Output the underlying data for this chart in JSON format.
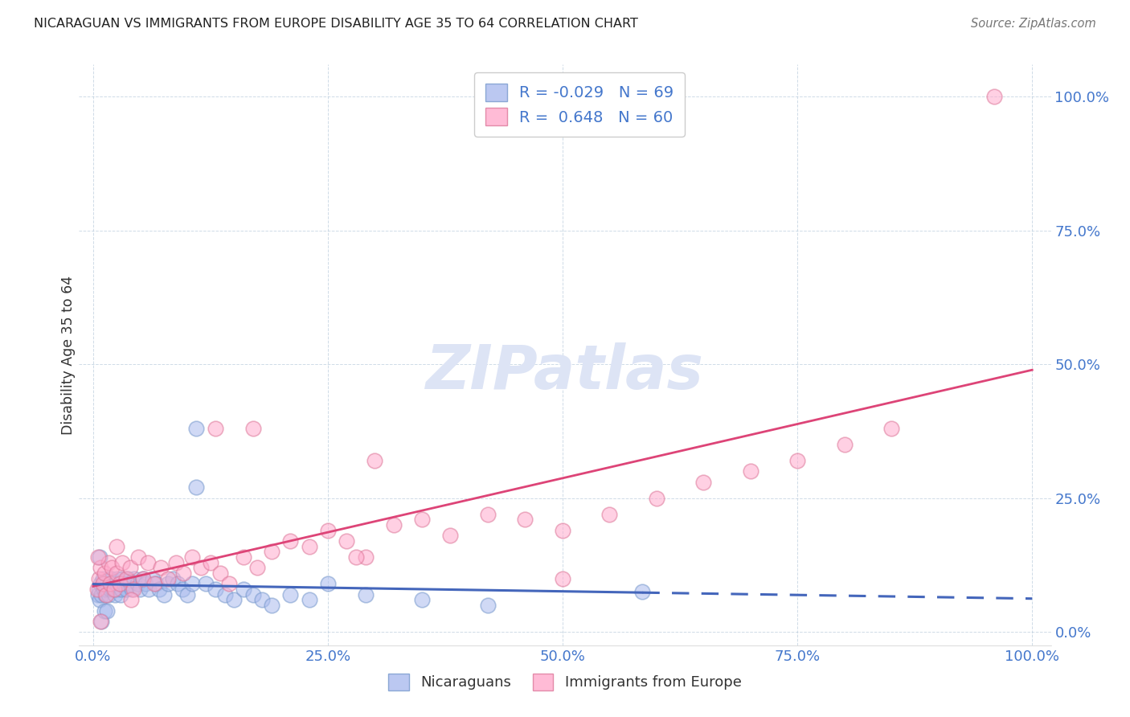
{
  "title": "NICARAGUAN VS IMMIGRANTS FROM EUROPE DISABILITY AGE 35 TO 64 CORRELATION CHART",
  "source": "Source: ZipAtlas.com",
  "ylabel": "Disability Age 35 to 64",
  "legend_R": [
    "-0.029",
    "0.648"
  ],
  "legend_N": [
    "69",
    "60"
  ],
  "blue_color": "#aabbee",
  "blue_edge_color": "#7799cc",
  "pink_color": "#ffaacc",
  "pink_edge_color": "#dd7799",
  "blue_line_color": "#4466bb",
  "pink_line_color": "#dd4477",
  "watermark_color": "#dde4f5",
  "tick_color": "#4477cc",
  "grid_color": "#bbccdd",
  "title_color": "#222222",
  "source_color": "#777777",
  "blue_x": [
    0.005,
    0.006,
    0.007,
    0.008,
    0.009,
    0.01,
    0.011,
    0.012,
    0.013,
    0.014,
    0.015,
    0.016,
    0.017,
    0.018,
    0.019,
    0.02,
    0.021,
    0.022,
    0.023,
    0.024,
    0.025,
    0.026,
    0.027,
    0.028,
    0.029,
    0.03,
    0.031,
    0.033,
    0.035,
    0.037,
    0.039,
    0.041,
    0.044,
    0.047,
    0.05,
    0.053,
    0.056,
    0.059,
    0.063,
    0.067,
    0.07,
    0.075,
    0.08,
    0.085,
    0.09,
    0.095,
    0.1,
    0.105,
    0.11,
    0.12,
    0.13,
    0.14,
    0.15,
    0.16,
    0.17,
    0.18,
    0.19,
    0.21,
    0.23,
    0.25,
    0.29,
    0.35,
    0.42,
    0.585,
    0.007,
    0.009,
    0.012,
    0.015,
    0.11
  ],
  "blue_y": [
    0.07,
    0.08,
    0.06,
    0.09,
    0.07,
    0.1,
    0.08,
    0.09,
    0.07,
    0.08,
    0.09,
    0.07,
    0.1,
    0.08,
    0.09,
    0.1,
    0.08,
    0.09,
    0.07,
    0.08,
    0.09,
    0.1,
    0.08,
    0.09,
    0.07,
    0.08,
    0.1,
    0.09,
    0.08,
    0.1,
    0.09,
    0.08,
    0.1,
    0.09,
    0.08,
    0.1,
    0.09,
    0.08,
    0.1,
    0.09,
    0.08,
    0.07,
    0.09,
    0.1,
    0.09,
    0.08,
    0.07,
    0.09,
    0.38,
    0.09,
    0.08,
    0.07,
    0.06,
    0.08,
    0.07,
    0.06,
    0.05,
    0.07,
    0.06,
    0.09,
    0.07,
    0.06,
    0.05,
    0.075,
    0.14,
    0.02,
    0.04,
    0.04,
    0.27
  ],
  "pink_x": [
    0.004,
    0.006,
    0.008,
    0.01,
    0.012,
    0.014,
    0.016,
    0.018,
    0.02,
    0.022,
    0.025,
    0.028,
    0.031,
    0.035,
    0.039,
    0.043,
    0.048,
    0.053,
    0.058,
    0.065,
    0.072,
    0.08,
    0.088,
    0.096,
    0.105,
    0.115,
    0.125,
    0.135,
    0.145,
    0.16,
    0.175,
    0.19,
    0.21,
    0.23,
    0.25,
    0.27,
    0.29,
    0.32,
    0.35,
    0.38,
    0.42,
    0.46,
    0.5,
    0.55,
    0.6,
    0.65,
    0.7,
    0.75,
    0.8,
    0.85,
    0.13,
    0.17,
    0.3,
    0.28,
    0.005,
    0.008,
    0.025,
    0.04,
    0.5,
    0.96
  ],
  "pink_y": [
    0.08,
    0.1,
    0.12,
    0.09,
    0.11,
    0.07,
    0.13,
    0.09,
    0.12,
    0.08,
    0.11,
    0.09,
    0.13,
    0.1,
    0.12,
    0.08,
    0.14,
    0.1,
    0.13,
    0.09,
    0.12,
    0.1,
    0.13,
    0.11,
    0.14,
    0.12,
    0.13,
    0.11,
    0.09,
    0.14,
    0.12,
    0.15,
    0.17,
    0.16,
    0.19,
    0.17,
    0.14,
    0.2,
    0.21,
    0.18,
    0.22,
    0.21,
    0.19,
    0.22,
    0.25,
    0.28,
    0.3,
    0.32,
    0.35,
    0.38,
    0.38,
    0.38,
    0.32,
    0.14,
    0.14,
    0.02,
    0.16,
    0.06,
    0.1,
    1.0
  ]
}
